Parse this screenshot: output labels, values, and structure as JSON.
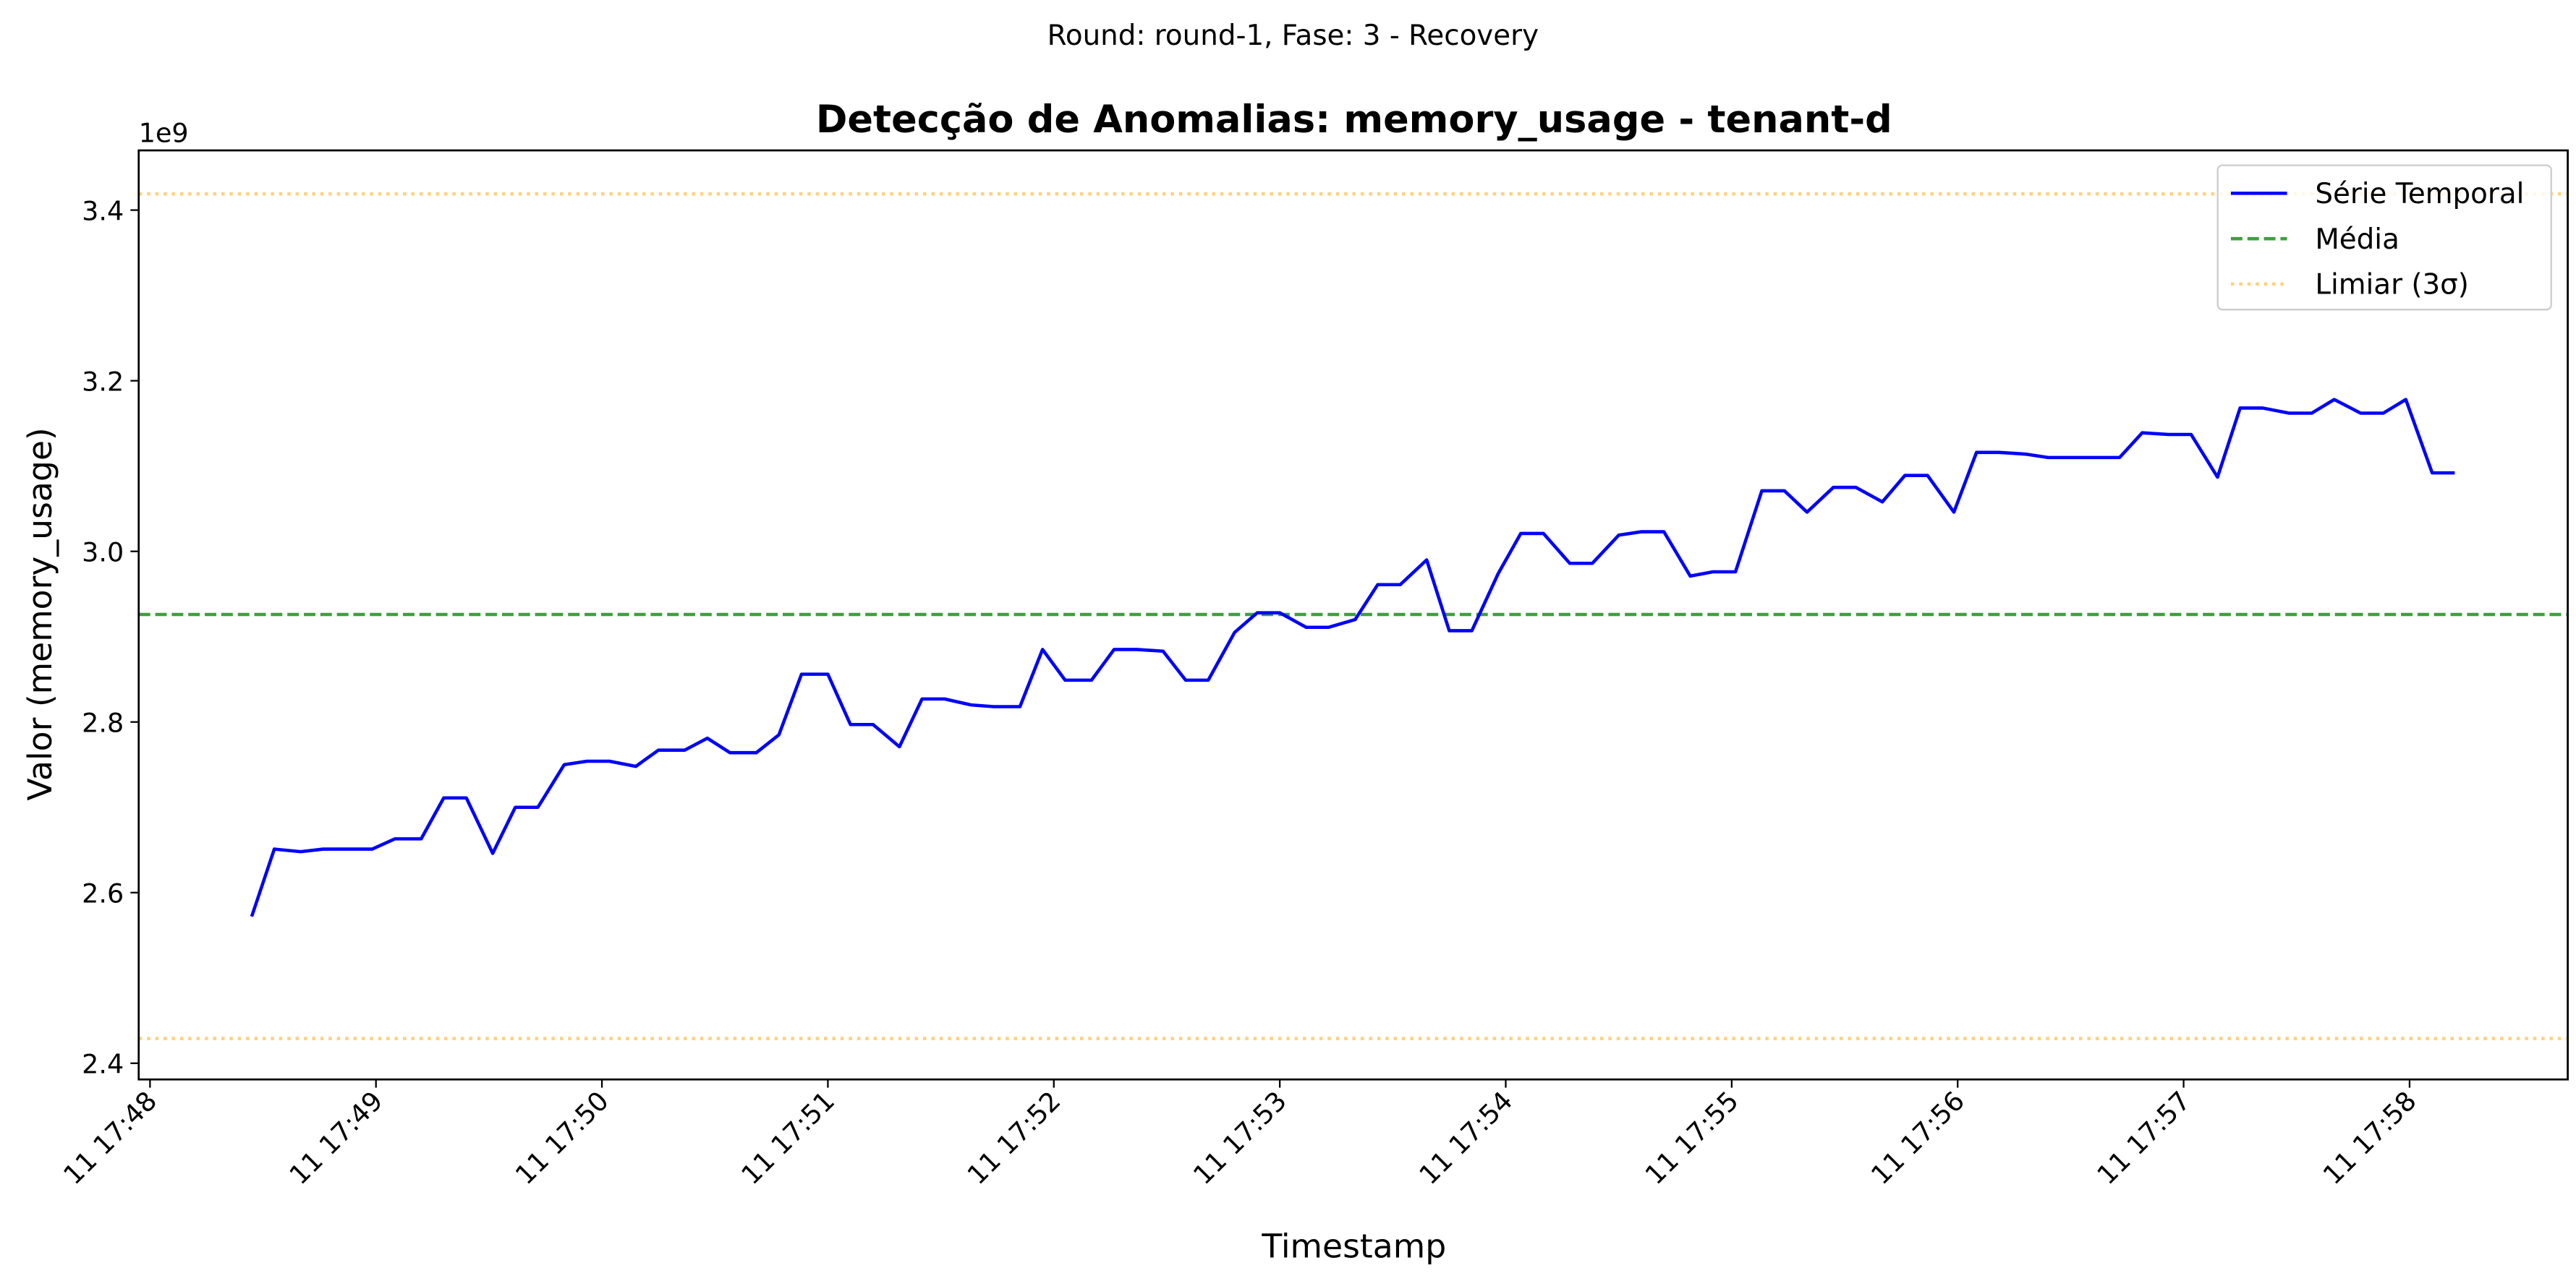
{
  "chart_data": {
    "type": "line",
    "suptitle": "Round: round-1, Fase: 3 - Recovery",
    "title": "Detecção de Anomalias: memory_usage - tenant-d",
    "xlabel": "Timestamp",
    "ylabel": "Valor (memory_usage)",
    "y_offset_label": "1e9",
    "x": [
      "11 17:48:27",
      "11 17:48:33",
      "11 17:48:40",
      "11 17:48:46",
      "11 17:48:52",
      "11 17:48:59",
      "11 17:49:05",
      "11 17:49:12",
      "11 17:49:18",
      "11 17:49:24",
      "11 17:49:31",
      "11 17:49:37",
      "11 17:49:43",
      "11 17:49:50",
      "11 17:49:56",
      "11 17:50:02",
      "11 17:50:09",
      "11 17:50:15",
      "11 17:50:22",
      "11 17:50:28",
      "11 17:50:34",
      "11 17:50:41",
      "11 17:50:47",
      "11 17:50:53",
      "11 17:51:00",
      "11 17:51:06",
      "11 17:51:12",
      "11 17:51:19",
      "11 17:51:25",
      "11 17:51:31",
      "11 17:51:38",
      "11 17:51:44",
      "11 17:51:51",
      "11 17:51:57",
      "11 17:52:03",
      "11 17:52:10",
      "11 17:52:16",
      "11 17:52:22",
      "11 17:52:29",
      "11 17:52:35",
      "11 17:52:41",
      "11 17:52:48",
      "11 17:52:54",
      "11 17:53:00",
      "11 17:53:07",
      "11 17:53:13",
      "11 17:53:20",
      "11 17:53:26",
      "11 17:53:32",
      "11 17:53:39",
      "11 17:53:45",
      "11 17:53:51",
      "11 17:53:58",
      "11 17:54:04",
      "11 17:54:10",
      "11 17:54:17",
      "11 17:54:23",
      "11 17:54:30",
      "11 17:54:36",
      "11 17:54:42",
      "11 17:54:49",
      "11 17:54:55",
      "11 17:55:01",
      "11 17:55:08",
      "11 17:55:14",
      "11 17:55:20",
      "11 17:55:27",
      "11 17:55:33",
      "11 17:55:40",
      "11 17:55:46",
      "11 17:55:52",
      "11 17:55:59",
      "11 17:56:05",
      "11 17:56:11",
      "11 17:56:18",
      "11 17:56:24",
      "11 17:56:30",
      "11 17:56:37",
      "11 17:56:43",
      "11 17:56:49",
      "11 17:56:56",
      "11 17:57:02",
      "11 17:57:09",
      "11 17:57:15",
      "11 17:57:21",
      "11 17:57:28",
      "11 17:57:34",
      "11 17:57:40",
      "11 17:57:47",
      "11 17:57:53",
      "11 17:57:59",
      "11 17:58:06",
      "11 17:58:12"
    ],
    "series": [
      {
        "name": "Série Temporal",
        "color": "blue",
        "values": [
          2.572,
          2.651,
          2.648,
          2.651,
          2.651,
          2.651,
          2.663,
          2.663,
          2.711,
          2.711,
          2.646,
          2.7,
          2.7,
          2.75,
          2.754,
          2.754,
          2.748,
          2.767,
          2.767,
          2.781,
          2.764,
          2.764,
          2.785,
          2.856,
          2.856,
          2.797,
          2.797,
          2.771,
          2.827,
          2.827,
          2.82,
          2.818,
          2.818,
          2.885,
          2.849,
          2.849,
          2.885,
          2.885,
          2.883,
          2.849,
          2.849,
          2.905,
          2.928,
          2.928,
          2.911,
          2.911,
          2.92,
          2.961,
          2.961,
          2.99,
          2.907,
          2.907,
          2.974,
          3.021,
          3.021,
          2.986,
          2.986,
          3.019,
          3.023,
          3.023,
          2.971,
          2.976,
          2.976,
          3.071,
          3.071,
          3.046,
          3.075,
          3.075,
          3.058,
          3.089,
          3.089,
          3.046,
          3.116,
          3.116,
          3.114,
          3.11,
          3.11,
          3.11,
          3.11,
          3.139,
          3.137,
          3.137,
          3.087,
          3.168,
          3.168,
          3.162,
          3.162,
          3.178,
          3.162,
          3.162,
          3.178,
          3.092,
          3.092
        ]
      }
    ],
    "reference_lines": [
      {
        "name": "Média",
        "color": "green",
        "style": "dashed",
        "values": [
          2.926
        ]
      },
      {
        "name": "Limiar (3σ)",
        "color": "orange",
        "style": "dotted",
        "values": [
          3.419,
          2.429
        ]
      }
    ],
    "xlim": [
      "11 17:47:57",
      "11 17:58:42"
    ],
    "xticks": [
      "11 17:48",
      "11 17:49",
      "11 17:50",
      "11 17:51",
      "11 17:52",
      "11 17:53",
      "11 17:54",
      "11 17:55",
      "11 17:56",
      "11 17:57",
      "11 17:58"
    ],
    "ylim": [
      2.381,
      3.47
    ],
    "yticks": [
      2.4,
      2.6,
      2.8,
      {
        "value": 3,
        "label": "3.0"
      },
      3.2,
      3.4
    ],
    "grid": false,
    "legend": "upper right"
  }
}
